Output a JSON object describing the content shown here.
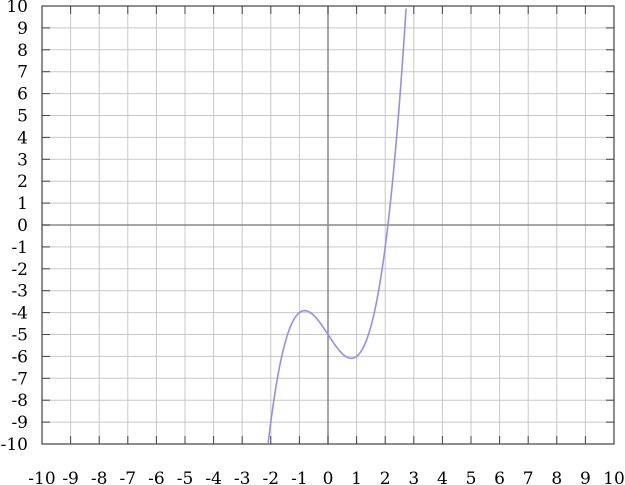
{
  "chart_data": {
    "type": "line",
    "title": "",
    "xlabel": "",
    "ylabel": "",
    "xlim": [
      -10,
      10
    ],
    "ylim": [
      -10,
      10
    ],
    "grid": true,
    "x_ticks": [
      -10,
      -9,
      -8,
      -7,
      -6,
      -5,
      -4,
      -3,
      -2,
      -1,
      0,
      1,
      2,
      3,
      4,
      5,
      6,
      7,
      8,
      9,
      10
    ],
    "y_ticks": [
      -10,
      -9,
      -8,
      -7,
      -6,
      -5,
      -4,
      -3,
      -2,
      -1,
      0,
      1,
      2,
      3,
      4,
      5,
      6,
      7,
      8,
      9,
      10
    ],
    "series": [
      {
        "function": "x^3 - 2x - 5",
        "color": "#9b8cec",
        "points": [
          [
            -2.09,
            -10
          ],
          [
            -2,
            -9
          ],
          [
            -1.5,
            -5.375
          ],
          [
            -1,
            -4
          ],
          [
            -0.816,
            -3.91
          ],
          [
            -0.5,
            -4.125
          ],
          [
            0,
            -5
          ],
          [
            0.5,
            -5.875
          ],
          [
            0.816,
            -6.09
          ],
          [
            1,
            -6
          ],
          [
            1.5,
            -4.625
          ],
          [
            2,
            -1
          ],
          [
            2.09,
            0
          ],
          [
            2.5,
            5.625
          ],
          [
            2.73,
            10
          ]
        ]
      }
    ],
    "colors": {
      "grid": "#c8c8c8",
      "axis": "#888888",
      "frame": "#444444"
    }
  }
}
